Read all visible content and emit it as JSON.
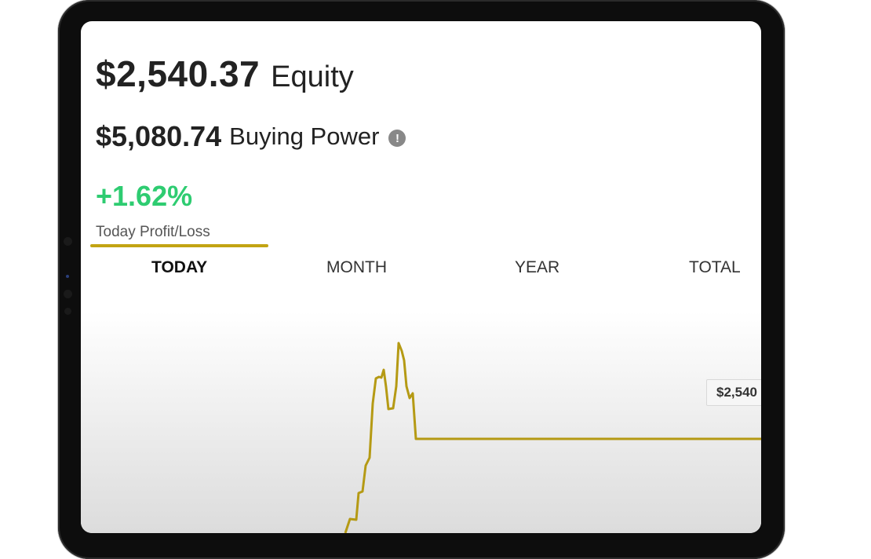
{
  "account": {
    "equity_value": "$2,540.37",
    "equity_label": "Equity",
    "buying_power_value": "$5,080.74",
    "buying_power_label": "Buying Power",
    "info_glyph": "!",
    "profit_loss_percent": "+1.62%",
    "profit_loss_label": "Today Profit/Loss",
    "positive_color": "#2ecc71",
    "accent_color": "#c2a413"
  },
  "tabs": [
    {
      "label": "TODAY",
      "active": true
    },
    {
      "label": "MONTH",
      "active": false
    },
    {
      "label": "YEAR",
      "active": false
    },
    {
      "label": "TOTAL",
      "active": false
    }
  ],
  "chart": {
    "price_tag": "$2,540",
    "line_color": "#b59a14"
  },
  "icons": {
    "info": "info-icon"
  }
}
